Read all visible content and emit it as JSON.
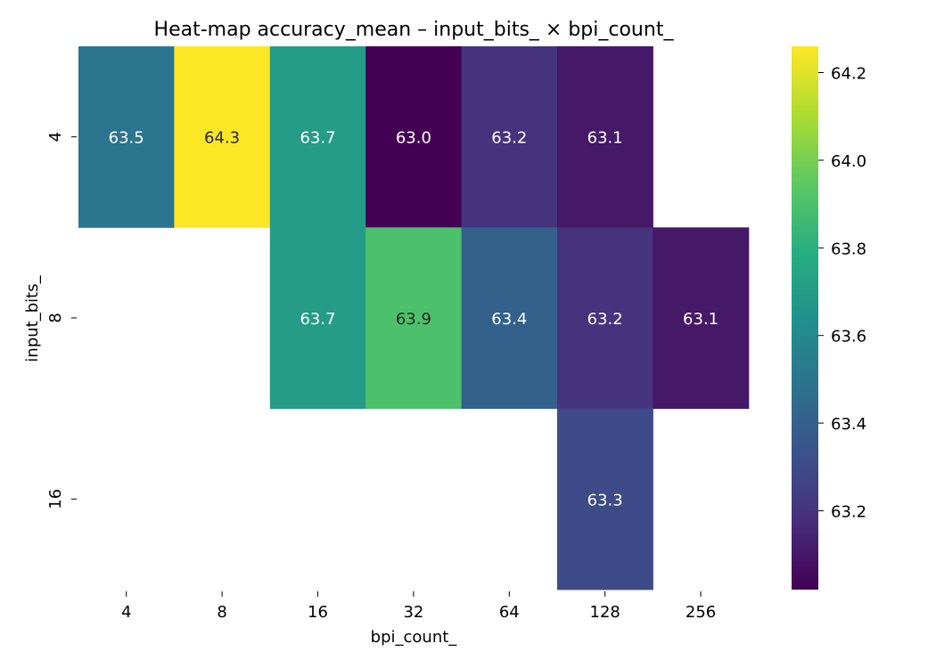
{
  "chart_data": {
    "type": "heatmap",
    "title": "Heat-map accuracy_mean – input_bits_ × bpi_count_",
    "xlabel": "bpi_count_",
    "ylabel": "input_bits_",
    "x_categories": [
      "4",
      "8",
      "16",
      "32",
      "64",
      "128",
      "256"
    ],
    "y_categories": [
      "4",
      "8",
      "16"
    ],
    "values": [
      [
        63.5,
        64.3,
        63.7,
        63.0,
        63.2,
        63.1,
        null
      ],
      [
        null,
        null,
        63.7,
        63.9,
        63.4,
        63.2,
        63.1
      ],
      [
        null,
        null,
        null,
        null,
        null,
        63.3,
        null
      ]
    ],
    "value_labels": [
      [
        "63.5",
        "64.3",
        "63.7",
        "63.0",
        "63.2",
        "63.1",
        null
      ],
      [
        null,
        null,
        "63.7",
        "63.9",
        "63.4",
        "63.2",
        "63.1"
      ],
      [
        null,
        null,
        null,
        null,
        null,
        "63.3",
        null
      ]
    ],
    "colormap": "viridis",
    "colorbar": {
      "vmin": 63.02,
      "vmax": 64.26,
      "ticks": [
        63.2,
        63.4,
        63.6,
        63.8,
        64.0,
        64.2
      ],
      "tick_labels": [
        "63.2",
        "63.4",
        "63.6",
        "63.8",
        "64.0",
        "64.2"
      ]
    },
    "grid": false,
    "annotation_colors": {
      "dark": "#262626",
      "light": "#ffffff"
    }
  }
}
